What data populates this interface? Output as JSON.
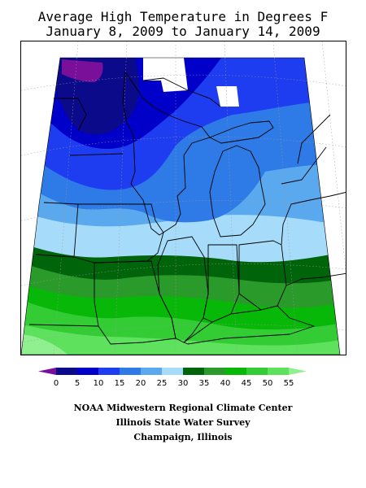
{
  "title": {
    "line1": "Average High Temperature in Degrees F",
    "line2": "January 8, 2009 to January 14, 2009"
  },
  "legend": {
    "ticks": [
      "0",
      "5",
      "10",
      "15",
      "20",
      "25",
      "30",
      "35",
      "40",
      "45",
      "50",
      "55"
    ],
    "colors": [
      "#7a0f9a",
      "#0a0a8a",
      "#0000c8",
      "#1e3cf0",
      "#2e7ae6",
      "#5aa8ee",
      "#a6dcfa",
      "#00640a",
      "#2a9a2a",
      "#08b808",
      "#34cc34",
      "#5ee25e",
      "#90f090"
    ]
  },
  "footer": {
    "line1": "NOAA Midwestern Regional Climate Center",
    "line2": "Illinois State Water Survey",
    "line3": "Champaign, Illinois"
  }
}
